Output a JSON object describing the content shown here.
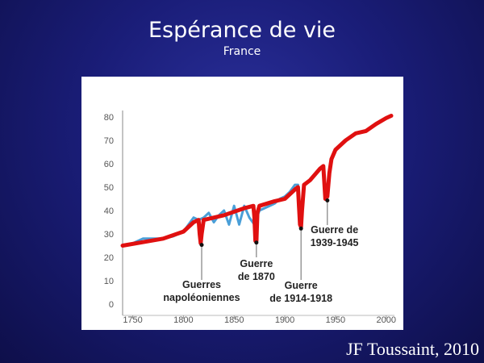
{
  "slide": {
    "title": "Espérance de vie",
    "subtitle": "France",
    "credit": "JF Toussaint, 2010"
  },
  "colors": {
    "background": "#1a1d78",
    "observed_line": "#4a9fd8",
    "trend_line": "#e01010",
    "axis_text": "#555555",
    "annotation": "#222222"
  },
  "chart_data": {
    "type": "line",
    "title": "",
    "xlabel": "",
    "ylabel": "",
    "xlim": [
      1740,
      2005
    ],
    "ylim": [
      0,
      80
    ],
    "x_ticks": [
      1750,
      1800,
      1850,
      1900,
      1950,
      2000
    ],
    "y_ticks": [
      0,
      10,
      20,
      30,
      40,
      50,
      60,
      70,
      80
    ],
    "grid": false,
    "series": [
      {
        "name": "",
        "color": "#4a9fd8",
        "points": [
          [
            1740,
            25
          ],
          [
            1750,
            26
          ],
          [
            1760,
            28
          ],
          [
            1770,
            28
          ],
          [
            1780,
            28
          ],
          [
            1790,
            29
          ],
          [
            1800,
            31
          ],
          [
            1805,
            34
          ],
          [
            1810,
            37
          ],
          [
            1815,
            36
          ],
          [
            1820,
            37
          ],
          [
            1825,
            39
          ],
          [
            1830,
            35
          ],
          [
            1835,
            38
          ],
          [
            1840,
            40
          ],
          [
            1845,
            34
          ],
          [
            1850,
            42
          ],
          [
            1855,
            34
          ],
          [
            1860,
            42
          ],
          [
            1865,
            37
          ],
          [
            1870,
            34
          ],
          [
            1875,
            40
          ],
          [
            1880,
            41
          ],
          [
            1885,
            42
          ],
          [
            1890,
            43
          ],
          [
            1895,
            45
          ],
          [
            1900,
            46
          ],
          [
            1905,
            48
          ],
          [
            1910,
            51
          ],
          [
            1913,
            51
          ]
        ]
      },
      {
        "name": "",
        "color": "#e01010",
        "points": [
          [
            1740,
            25
          ],
          [
            1760,
            26.5
          ],
          [
            1780,
            28
          ],
          [
            1800,
            31
          ],
          [
            1810,
            35
          ],
          [
            1815,
            36
          ],
          [
            1816,
            30
          ],
          [
            1817,
            26
          ],
          [
            1818,
            30
          ],
          [
            1820,
            36
          ],
          [
            1840,
            38
          ],
          [
            1860,
            41
          ],
          [
            1869,
            42
          ],
          [
            1870,
            37
          ],
          [
            1871,
            27
          ],
          [
            1872,
            27
          ],
          [
            1873,
            39
          ],
          [
            1875,
            42
          ],
          [
            1890,
            44
          ],
          [
            1900,
            45
          ],
          [
            1910,
            49
          ],
          [
            1913,
            50
          ],
          [
            1914,
            42
          ],
          [
            1915,
            34
          ],
          [
            1916,
            33
          ],
          [
            1917,
            40
          ],
          [
            1919,
            51
          ],
          [
            1925,
            53
          ],
          [
            1935,
            58
          ],
          [
            1938,
            59
          ],
          [
            1940,
            45
          ],
          [
            1942,
            46
          ],
          [
            1944,
            56
          ],
          [
            1946,
            62
          ],
          [
            1950,
            66
          ],
          [
            1960,
            70
          ],
          [
            1970,
            73
          ],
          [
            1980,
            74
          ],
          [
            1990,
            77
          ],
          [
            2000,
            79.5
          ],
          [
            2005,
            80.5
          ]
        ]
      }
    ],
    "annotations": [
      {
        "label_lines": [
          "Guerres",
          "napoléoniennes"
        ],
        "x": 1818,
        "y": 26
      },
      {
        "label_lines": [
          "Guerre",
          "de 1870"
        ],
        "x": 1872,
        "y": 27
      },
      {
        "label_lines": [
          "Guerre",
          "de 1914-1918"
        ],
        "x": 1916,
        "y": 33
      },
      {
        "label_lines": [
          "Guerre de",
          "1939-1945"
        ],
        "x": 1942,
        "y": 45
      }
    ]
  }
}
